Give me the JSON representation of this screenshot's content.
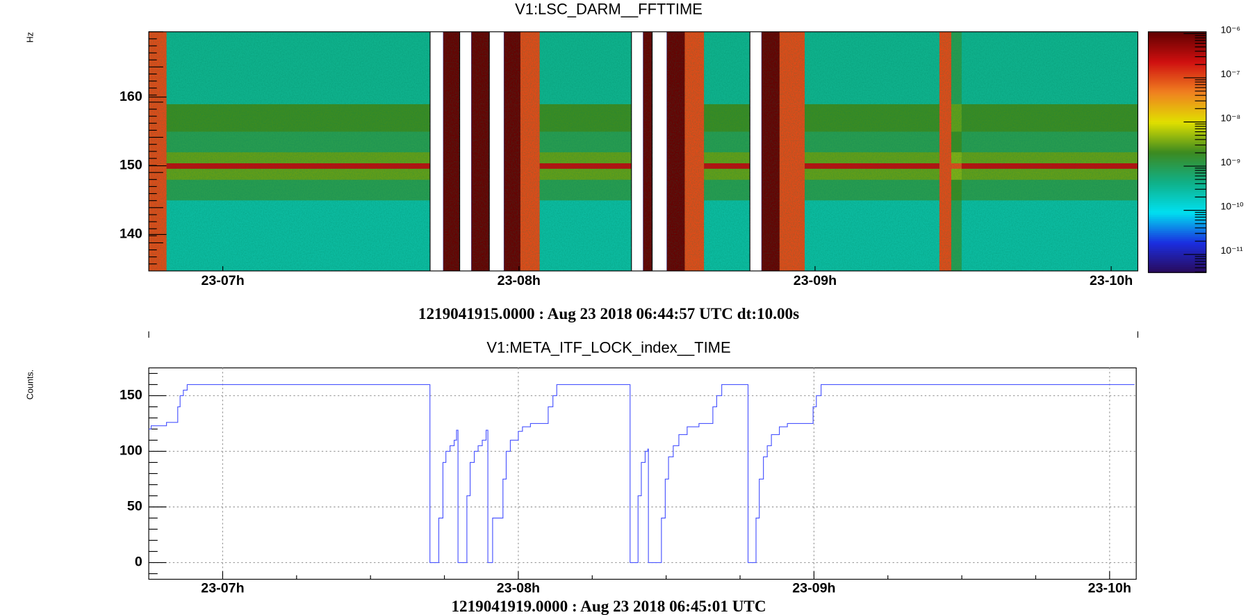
{
  "chart_data": [
    {
      "type": "heatmap",
      "title": "V1:LSC_DARM__FFTTIME",
      "ylabel": "Hz",
      "footer": "1219041915.0000 : Aug 23 2018 06:44:57 UTC dt:10.00s",
      "x_edges": [
        6.75,
        6.81,
        7.7,
        7.745,
        7.8,
        7.84,
        7.9,
        7.95,
        8.005,
        8.07,
        8.38,
        8.42,
        8.45,
        8.5,
        8.56,
        8.625,
        8.78,
        8.82,
        8.88,
        8.965,
        9.42,
        9.46,
        9.495,
        10.09
      ],
      "y_edges": [
        134.7,
        145,
        148,
        149.6,
        150.4,
        152,
        155,
        159,
        169.5
      ],
      "z": [
        [
          1e-07,
          1e-07,
          1e-07,
          1e-07,
          1e-07,
          1e-07,
          1e-07,
          1e-07
        ],
        [
          3e-10,
          1e-09,
          3e-09,
          3e-07,
          3e-09,
          1e-09,
          2e-09,
          4e-10
        ],
        [
          null,
          null,
          null,
          null,
          null,
          null,
          null,
          null
        ],
        [
          1e-06,
          1e-06,
          1e-06,
          1e-06,
          1e-06,
          1e-06,
          1e-06,
          1e-06
        ],
        [
          null,
          null,
          null,
          null,
          null,
          null,
          null,
          null
        ],
        [
          1e-06,
          1e-06,
          1e-06,
          1e-06,
          1e-06,
          1e-06,
          1e-06,
          1e-06
        ],
        [
          null,
          null,
          null,
          null,
          null,
          null,
          null,
          null
        ],
        [
          1e-06,
          1e-06,
          1e-06,
          1e-06,
          1e-06,
          1e-06,
          1e-06,
          1e-06
        ],
        [
          1e-07,
          1e-07,
          1e-07,
          1e-07,
          1e-07,
          1e-07,
          1e-07,
          1e-07
        ],
        [
          3e-10,
          1e-09,
          3e-09,
          3e-07,
          3e-09,
          1e-09,
          2e-09,
          4e-10
        ],
        [
          null,
          null,
          null,
          null,
          null,
          null,
          null,
          null
        ],
        [
          1e-06,
          1e-06,
          1e-06,
          1e-06,
          1e-06,
          1e-06,
          1e-06,
          1e-06
        ],
        [
          null,
          null,
          null,
          null,
          null,
          null,
          null,
          null
        ],
        [
          1e-06,
          1e-06,
          1e-06,
          1e-06,
          1e-06,
          1e-06,
          1e-06,
          1e-06
        ],
        [
          1e-07,
          1e-07,
          1e-07,
          1e-07,
          1e-07,
          1e-07,
          1e-07,
          1e-07
        ],
        [
          3e-10,
          1e-09,
          3e-09,
          3e-07,
          3e-09,
          1e-09,
          2e-09,
          4e-10
        ],
        [
          null,
          null,
          null,
          null,
          null,
          null,
          null,
          null
        ],
        [
          1e-06,
          1e-06,
          1e-06,
          1e-06,
          1e-06,
          1e-06,
          1e-06,
          1e-06
        ],
        [
          1e-07,
          1e-07,
          1e-07,
          1e-07,
          1e-07,
          1e-07,
          1e-07,
          1e-07
        ],
        [
          3e-10,
          1e-09,
          3e-09,
          3e-07,
          3e-09,
          1e-09,
          2e-09,
          4e-10
        ],
        [
          1e-07,
          1e-07,
          1e-07,
          1e-07,
          1e-07,
          1e-07,
          1e-07,
          1e-07
        ],
        [
          1e-09,
          2e-09,
          4e-09,
          1e-07,
          4e-09,
          2e-09,
          3e-09,
          1e-09
        ],
        [
          3e-10,
          1e-09,
          3e-09,
          3e-07,
          3e-09,
          1e-09,
          2e-09,
          4e-10
        ]
      ],
      "xlim": [
        6.75,
        10.09
      ],
      "xticks": [
        {
          "value": 7,
          "label": "23-07h"
        },
        {
          "value": 8,
          "label": "23-08h"
        },
        {
          "value": 9,
          "label": "23-09h"
        },
        {
          "value": 10,
          "label": "23-10h"
        }
      ],
      "ylim": [
        134.7,
        169.5
      ],
      "yticks": [
        140,
        150,
        160
      ],
      "zlim": [
        3.9e-12,
        1.1e-06
      ],
      "zscale": "log",
      "zticks": [
        {
          "value": 1e-06,
          "label": "10⁻⁶"
        },
        {
          "value": 1e-07,
          "label": "10⁻⁷"
        },
        {
          "value": 1e-08,
          "label": "10⁻⁸"
        },
        {
          "value": 1e-09,
          "label": "10⁻⁹"
        },
        {
          "value": 1e-10,
          "label": "10⁻¹⁰"
        },
        {
          "value": 1e-11,
          "label": "10⁻¹¹"
        }
      ],
      "colormap": [
        "#2a0a5a",
        "#1a2ee0",
        "#00e0f0",
        "#10b088",
        "#3c8a20",
        "#e0e000",
        "#f08020",
        "#d01010",
        "#600000"
      ]
    },
    {
      "type": "line",
      "title": "V1:META_ITF_LOCK_index__TIME",
      "ylabel": "Counts.",
      "footer": "1219041919.0000 : Aug 23 2018 06:45:01 UTC",
      "drawstyle": "steps-post",
      "grid": true,
      "xlim": [
        6.75,
        10.09
      ],
      "xticks": [
        {
          "value": 7,
          "label": "23-07h"
        },
        {
          "value": 8,
          "label": "23-08h"
        },
        {
          "value": 9,
          "label": "23-09h"
        },
        {
          "value": 10,
          "label": "23-10h"
        }
      ],
      "ylim": [
        -15,
        175
      ],
      "yticks": [
        0,
        50,
        100,
        150
      ],
      "series": [
        {
          "color": "#4a55ff",
          "x": [
            6.75,
            6.758,
            6.81,
            6.848,
            6.856,
            6.867,
            6.88,
            7.701,
            7.731,
            7.745,
            7.755,
            7.769,
            7.783,
            7.791,
            7.796,
            7.826,
            7.837,
            7.851,
            7.864,
            7.878,
            7.891,
            7.897,
            7.913,
            7.948,
            7.959,
            7.973,
            8.0,
            8.014,
            8.041,
            8.101,
            8.117,
            8.13,
            8.378,
            8.405,
            8.416,
            8.429,
            8.438,
            8.44,
            8.484,
            8.497,
            8.508,
            8.524,
            8.543,
            8.571,
            8.611,
            8.658,
            8.671,
            8.688,
            8.777,
            8.804,
            8.815,
            8.829,
            8.842,
            8.856,
            8.883,
            8.91,
            8.997,
            9.008,
            9.024,
            10.084
          ],
          "values": [
            120,
            123,
            126,
            140,
            150,
            155,
            160,
            0,
            40,
            90,
            100,
            105,
            110,
            119,
            0,
            60,
            90,
            100,
            105,
            110,
            119,
            0,
            40,
            75,
            100,
            110,
            118,
            122,
            125,
            140,
            150,
            160,
            0,
            60,
            90,
            100,
            102,
            0,
            40,
            75,
            95,
            105,
            115,
            122,
            125,
            140,
            150,
            160,
            0,
            40,
            75,
            95,
            105,
            115,
            122,
            125,
            140,
            150,
            160,
            160
          ]
        }
      ]
    }
  ]
}
